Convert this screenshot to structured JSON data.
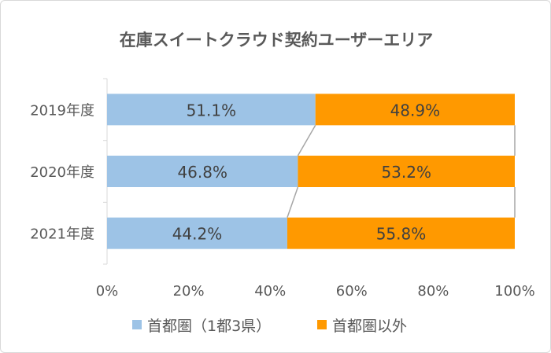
{
  "chart_data": {
    "type": "bar",
    "orientation": "horizontal",
    "stacked": "percent",
    "title": "在庫スイートクラウド契約ユーザーエリア",
    "categories": [
      "2019年度",
      "2020年度",
      "2021年度"
    ],
    "series": [
      {
        "name": "首都圏（1都3県）",
        "color": "#9dc3e6",
        "values": [
          51.1,
          46.8,
          44.2
        ],
        "labels": [
          "51.1%",
          "46.8%",
          "44.2%"
        ]
      },
      {
        "name": "首都圏以外",
        "color": "#ff9900",
        "values": [
          48.9,
          53.2,
          55.8
        ],
        "labels": [
          "48.9%",
          "53.2%",
          "55.8%"
        ]
      }
    ],
    "xlim": [
      0,
      100
    ],
    "xticks": [
      0,
      20,
      40,
      60,
      80,
      100
    ],
    "xtick_labels": [
      "0%",
      "20%",
      "40%",
      "60%",
      "80%",
      "100%"
    ],
    "series_lines": true,
    "grid": false,
    "legend": "bottom"
  }
}
